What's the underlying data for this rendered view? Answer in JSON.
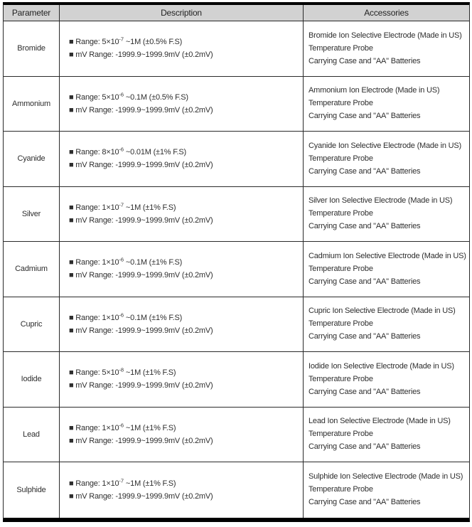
{
  "table": {
    "headers": [
      "Parameter",
      "Description",
      "Accessories"
    ],
    "rows": [
      {
        "parameter": "Bromide",
        "range_base": "■ Range: 5×10",
        "range_exp": "-7",
        "range_rest": " ~1M (±0.5% F.S)",
        "mv_range": "■ mV Range: -1999.9~1999.9mV (±0.2mV)",
        "accessories": [
          "Bromide Ion Selective Electrode (Made in US)",
          "Temperature Probe",
          "Carrying Case and \"AA\" Batteries"
        ]
      },
      {
        "parameter": "Ammonium",
        "range_base": "■ Range: 5×10",
        "range_exp": "-6",
        "range_rest": " ~0.1M (±0.5% F.S)",
        "mv_range": "■ mV Range: -1999.9~1999.9mV (±0.2mV)",
        "accessories": [
          "Ammonium Ion Electrode (Made in US)",
          "Temperature Probe",
          "Carrying Case and \"AA\" Batteries"
        ]
      },
      {
        "parameter": "Cyanide",
        "range_base": "■ Range: 8×10",
        "range_exp": "-6",
        "range_rest": " ~0.01M (±1% F.S)",
        "mv_range": "■ mV Range: -1999.9~1999.9mV (±0.2mV)",
        "accessories": [
          "Cyanide Ion Selective Electrode (Made in US)",
          "Temperature Probe",
          "Carrying Case and \"AA\" Batteries"
        ]
      },
      {
        "parameter": "Silver",
        "range_base": "■ Range: 1×10",
        "range_exp": "-7",
        "range_rest": " ~1M (±1% F.S)",
        "mv_range": "■ mV Range: -1999.9~1999.9mV (±0.2mV)",
        "accessories": [
          "Silver Ion Selective Electrode (Made in US)",
          "Temperature Probe",
          "Carrying Case and \"AA\" Batteries"
        ]
      },
      {
        "parameter": "Cadmium",
        "range_base": "■ Range: 1×10",
        "range_exp": "-6",
        "range_rest": " ~0.1M (±1% F.S)",
        "mv_range": "■ mV Range: -1999.9~1999.9mV (±0.2mV)",
        "accessories": [
          "Cadmium Ion Selective Electrode (Made in US)",
          "Temperature Probe",
          "Carrying Case and \"AA\" Batteries"
        ]
      },
      {
        "parameter": "Cupric",
        "range_base": "■ Range: 1×10",
        "range_exp": "-6",
        "range_rest": " ~0.1M (±1% F.S)",
        "mv_range": "■ mV Range: -1999.9~1999.9mV (±0.2mV)",
        "accessories": [
          "Cupric Ion Selective Electrode (Made in US)",
          "Temperature Probe",
          "Carrying Case and \"AA\" Batteries"
        ]
      },
      {
        "parameter": "Iodide",
        "range_base": "■ Range: 5×10",
        "range_exp": "-8",
        "range_rest": " ~1M (±1% F.S)",
        "mv_range": "■ mV Range: -1999.9~1999.9mV (±0.2mV)",
        "accessories": [
          "Iodide Ion Selective Electrode (Made in US)",
          "Temperature Probe",
          "Carrying Case and \"AA\" Batteries"
        ]
      },
      {
        "parameter": "Lead",
        "range_base": "■ Range: 1×10",
        "range_exp": "-6",
        "range_rest": " ~1M (±1% F.S)",
        "mv_range": "■ mV Range: -1999.9~1999.9mV (±0.2mV)",
        "accessories": [
          "Lead Ion Selective Electrode (Made in US)",
          "Temperature Probe",
          "Carrying Case and \"AA\" Batteries"
        ]
      },
      {
        "parameter": "Sulphide",
        "range_base": "■ Range: 1×10",
        "range_exp": "-7",
        "range_rest": " ~1M (±1% F.S)",
        "mv_range": "■ mV Range: -1999.9~1999.9mV (±0.2mV)",
        "accessories": [
          "Sulphide Ion Selective Electrode (Made in US)",
          "Temperature Probe",
          "Carrying Case and \"AA\" Batteries"
        ]
      }
    ]
  }
}
